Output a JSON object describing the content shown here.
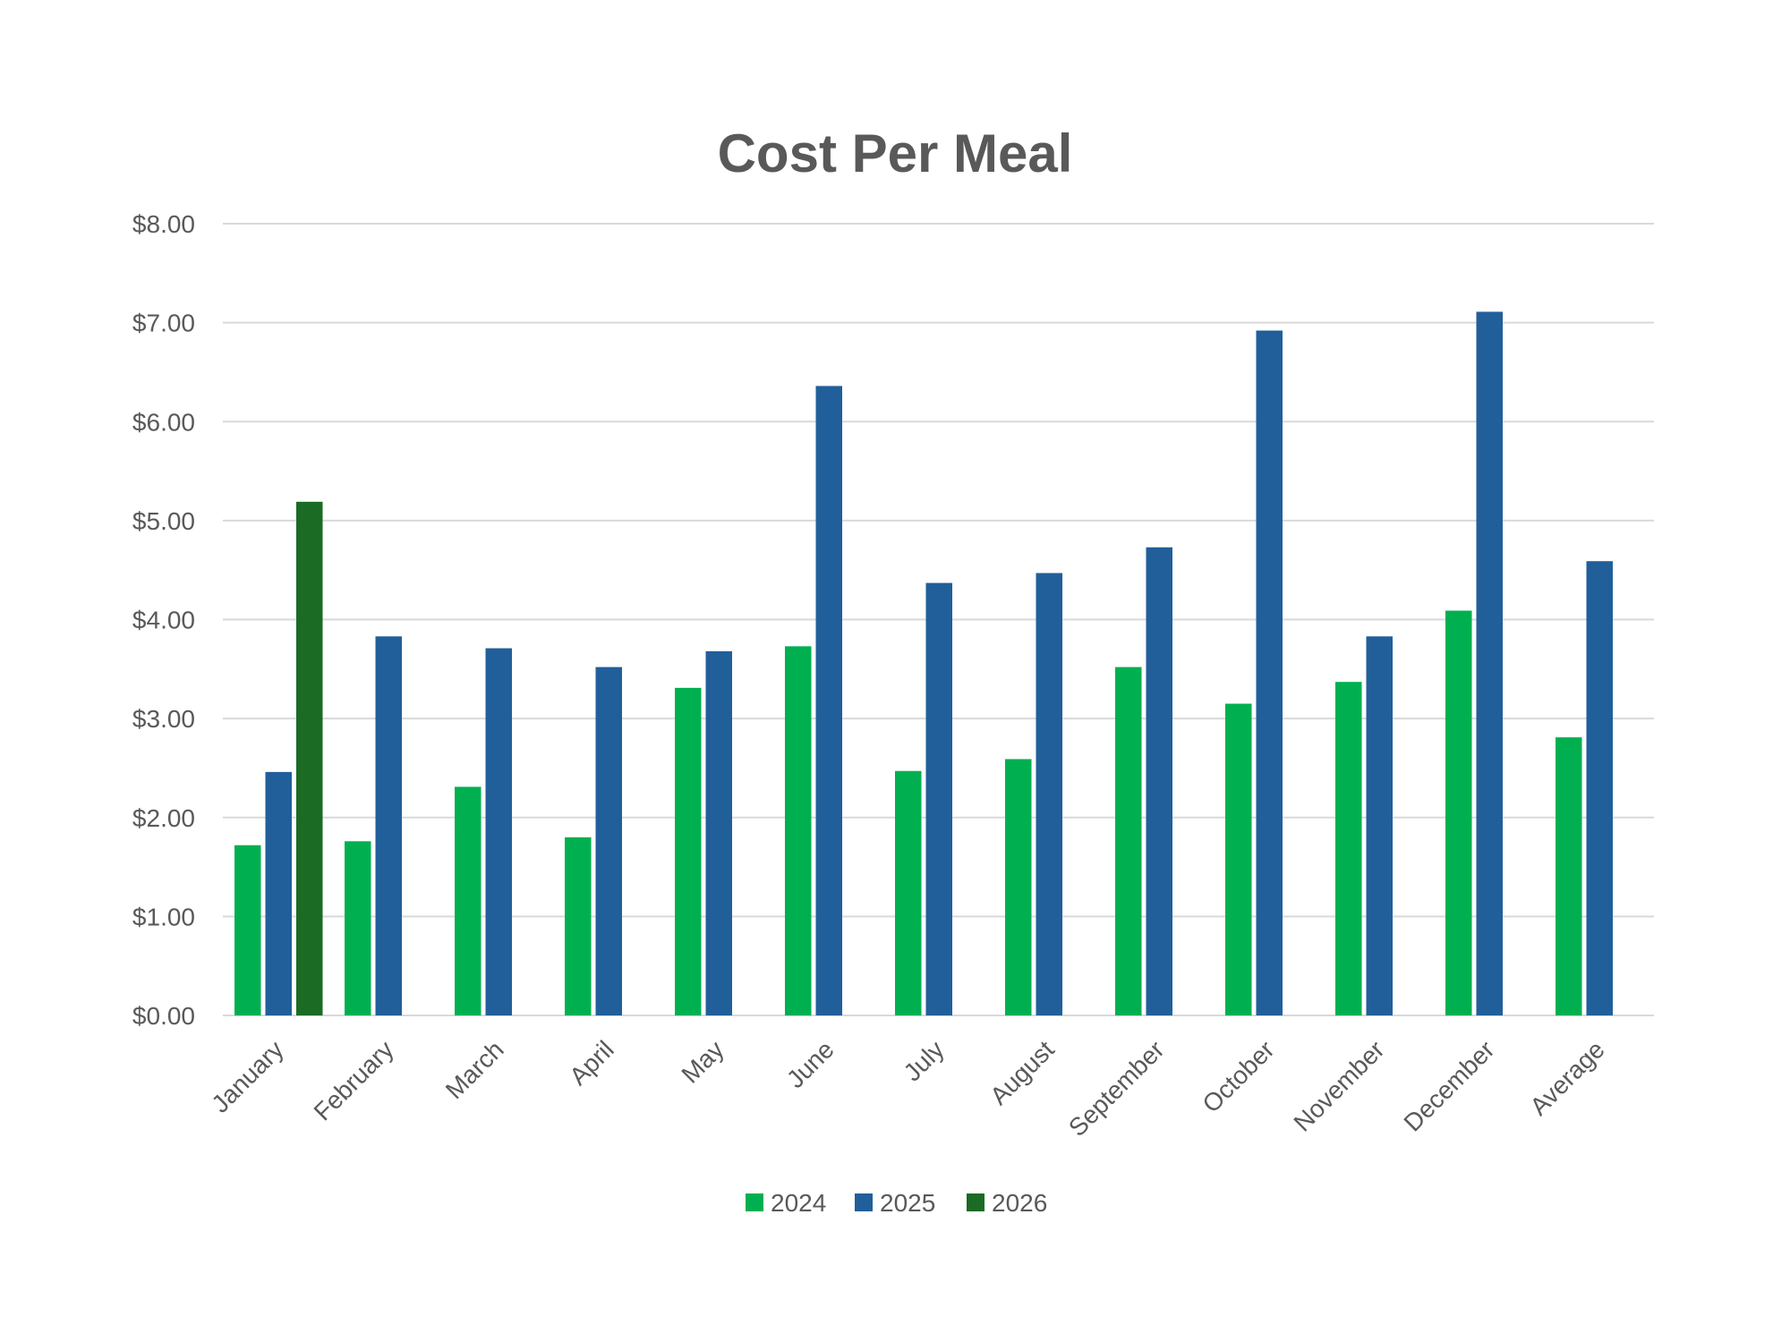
{
  "chart_data": {
    "type": "bar",
    "title": "Cost Per Meal",
    "xlabel": "",
    "ylabel": "",
    "ylim": [
      0,
      8
    ],
    "yticks": [
      "$0.00",
      "$1.00",
      "$2.00",
      "$3.00",
      "$4.00",
      "$5.00",
      "$6.00",
      "$7.00",
      "$8.00"
    ],
    "grid": true,
    "legend_position": "bottom",
    "categories": [
      "January",
      "February",
      "March",
      "April",
      "May",
      "June",
      "July",
      "August",
      "September",
      "October",
      "November",
      "December",
      "Average"
    ],
    "series": [
      {
        "name": "2024",
        "color": "#00B050",
        "values": [
          1.72,
          1.76,
          2.31,
          1.8,
          3.31,
          3.73,
          2.47,
          2.59,
          3.52,
          3.15,
          3.37,
          4.09,
          2.81
        ]
      },
      {
        "name": "2025",
        "color": "#215F9A",
        "values": [
          2.46,
          3.83,
          3.71,
          3.52,
          3.68,
          6.36,
          4.37,
          4.47,
          4.73,
          6.92,
          3.83,
          7.11,
          4.59
        ]
      },
      {
        "name": "2026",
        "color": "#1B6B24",
        "values": [
          5.19,
          null,
          null,
          null,
          null,
          null,
          null,
          null,
          null,
          null,
          null,
          null,
          null
        ]
      }
    ]
  }
}
